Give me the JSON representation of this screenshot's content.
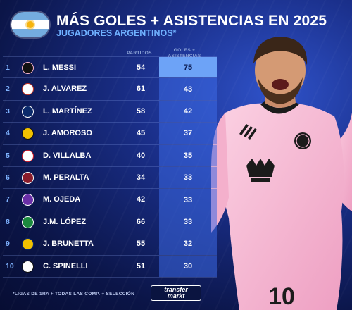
{
  "header": {
    "title": "MÁS GOLES + ASISTENCIAS EN 2025",
    "subtitle": "JUGADORES ARGENTINOS*"
  },
  "columns": {
    "partidos": "PARTIDOS",
    "goles_line1": "GOLES +",
    "goles_line2": "ASISTENCIAS"
  },
  "players": [
    {
      "rank": "1",
      "name": "L. MESSI",
      "partidos": "54",
      "total": "75",
      "badge_color": "#111111",
      "badge_fg": "#f7b5cd",
      "badge_icon": "inter-miami-crest-icon"
    },
    {
      "rank": "2",
      "name": "J. ALVAREZ",
      "partidos": "61",
      "total": "43",
      "badge_color": "#ffffff",
      "badge_fg": "#cb3524",
      "badge_icon": "atletico-madrid-crest-icon"
    },
    {
      "rank": "3",
      "name": "L. MARTÍNEZ",
      "partidos": "58",
      "total": "42",
      "badge_color": "#0b2a6b",
      "badge_fg": "#ffffff",
      "badge_icon": "inter-milan-crest-icon"
    },
    {
      "rank": "4",
      "name": "J. AMOROSO",
      "partidos": "45",
      "total": "37",
      "badge_color": "#f2c200",
      "badge_fg": "#111111",
      "badge_icon": "club-crest-icon"
    },
    {
      "rank": "5",
      "name": "D. VILLALBA",
      "partidos": "40",
      "total": "35",
      "badge_color": "#ffffff",
      "badge_fg": "#d81e2c",
      "badge_icon": "club-crest-icon"
    },
    {
      "rank": "6",
      "name": "M. PERALTA",
      "partidos": "34",
      "total": "33",
      "badge_color": "#8a1c2b",
      "badge_fg": "#ffffff",
      "badge_icon": "club-crest-icon"
    },
    {
      "rank": "7",
      "name": "M. OJEDA",
      "partidos": "42",
      "total": "33",
      "badge_color": "#6a2fa8",
      "badge_fg": "#ffffff",
      "badge_icon": "orlando-city-crest-icon"
    },
    {
      "rank": "8",
      "name": "J.M. LÓPEZ",
      "partidos": "66",
      "total": "33",
      "badge_color": "#1b8a3e",
      "badge_fg": "#ffffff",
      "badge_icon": "palmeiras-crest-icon"
    },
    {
      "rank": "9",
      "name": "J. BRUNETTA",
      "partidos": "55",
      "total": "32",
      "badge_color": "#f2c200",
      "badge_fg": "#0b2a6b",
      "badge_icon": "tigres-crest-icon"
    },
    {
      "rank": "10",
      "name": "C. SPINELLI",
      "partidos": "51",
      "total": "30",
      "badge_color": "#ffffff",
      "badge_fg": "#111111",
      "badge_icon": "club-crest-icon"
    }
  ],
  "footer": {
    "note": "*LIGAS DE 1RA + TODAS LAS COMP. + SELECCIÓN",
    "logo_line1": "transfer",
    "logo_line2": "markt"
  },
  "colors": {
    "accent": "#6fb1ff",
    "highlight": "#6da3f7",
    "shirt_pink": "#f7b8d3",
    "background": "#0a1440"
  }
}
